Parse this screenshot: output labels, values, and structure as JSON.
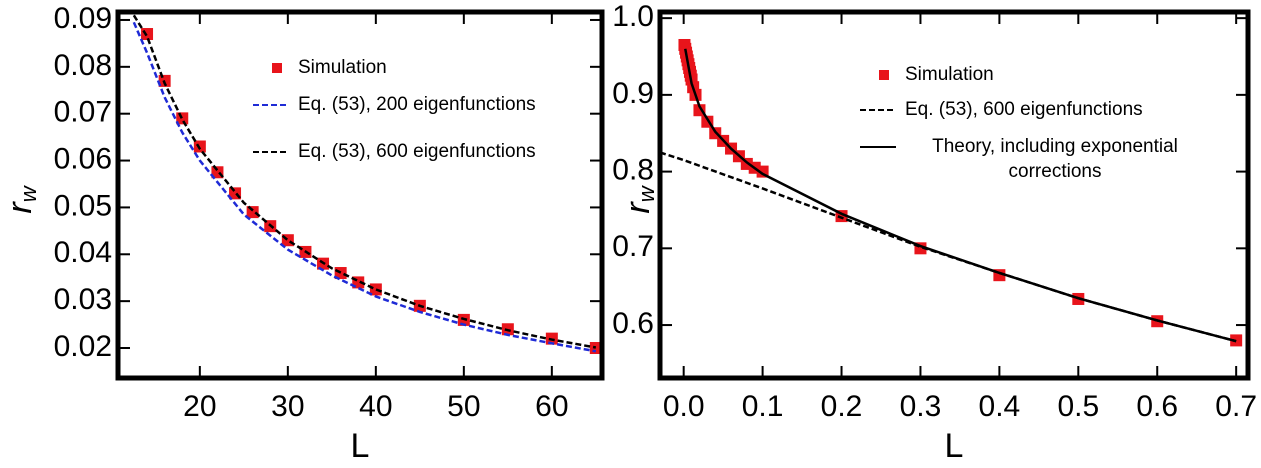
{
  "chart_data": [
    {
      "type": "line",
      "x_label": "L",
      "y_label": {
        "main": "r",
        "sub": "w"
      },
      "xlim": [
        10.7,
        65.7
      ],
      "xticks": [
        20,
        30,
        40,
        50,
        60
      ],
      "ylim": [
        0.0136,
        0.0917
      ],
      "yticks": [
        0.02,
        0.03,
        0.04,
        0.05,
        0.06,
        0.07,
        0.08,
        0.09
      ],
      "series": [
        {
          "name": "Simulation",
          "color": "#e8141b",
          "style": "square",
          "x": [
            14,
            16,
            18,
            20,
            22,
            24,
            26,
            28,
            30,
            32,
            34,
            36,
            38,
            40,
            45,
            50,
            55,
            60,
            65
          ],
          "values": [
            0.087,
            0.077,
            0.069,
            0.063,
            0.0575,
            0.053,
            0.049,
            0.046,
            0.043,
            0.0405,
            0.038,
            0.036,
            0.034,
            0.0325,
            0.029,
            0.026,
            0.024,
            0.022,
            0.02
          ]
        },
        {
          "name": "Eq. (53), 200 eigenfunctions",
          "color": "#1f2bd6",
          "style": "dashed",
          "x": [
            12.5,
            14,
            16,
            18,
            20,
            25,
            30,
            35,
            40,
            45,
            50,
            55,
            60,
            65
          ],
          "values": [
            0.0895,
            0.083,
            0.0735,
            0.066,
            0.06,
            0.0485,
            0.041,
            0.0355,
            0.031,
            0.0277,
            0.025,
            0.0228,
            0.021,
            0.0193
          ]
        },
        {
          "name": "Eq. (53), 600 eigenfunctions",
          "color": "#000000",
          "style": "dashed",
          "x": [
            12.5,
            14,
            16,
            18,
            20,
            25,
            30,
            35,
            40,
            45,
            50,
            55,
            60,
            65
          ],
          "values": [
            0.091,
            0.0865,
            0.0765,
            0.0688,
            0.0625,
            0.051,
            0.043,
            0.037,
            0.0325,
            0.029,
            0.0262,
            0.0238,
            0.0218,
            0.0201
          ]
        }
      ]
    },
    {
      "type": "line",
      "x_label": "L",
      "y_label": {
        "main": "r",
        "sub": "w"
      },
      "xlim": [
        -0.03,
        0.715
      ],
      "xticks": [
        {
          "value": 0,
          "label": "0.0"
        },
        0.1,
        0.2,
        0.3,
        0.4,
        0.5,
        0.6,
        0.7
      ],
      "ylim": [
        0.531,
        1.008
      ],
      "yticks": [
        0.6,
        0.7,
        0.8,
        0.9,
        {
          "value": 1,
          "label": "1.0"
        }
      ],
      "series": [
        {
          "name": "Simulation",
          "color": "#e8141b",
          "style": "square",
          "x": [
            0.001,
            0.002,
            0.003,
            0.004,
            0.005,
            0.006,
            0.007,
            0.008,
            0.009,
            0.01,
            0.012,
            0.015,
            0.02,
            0.03,
            0.04,
            0.05,
            0.06,
            0.07,
            0.08,
            0.09,
            0.1,
            0.2,
            0.3,
            0.4,
            0.5,
            0.6,
            0.7
          ],
          "values": [
            0.965,
            0.96,
            0.955,
            0.95,
            0.945,
            0.94,
            0.935,
            0.93,
            0.925,
            0.92,
            0.91,
            0.9,
            0.88,
            0.865,
            0.85,
            0.84,
            0.83,
            0.82,
            0.81,
            0.805,
            0.8,
            0.742,
            0.7,
            0.665,
            0.634,
            0.605,
            0.58
          ]
        },
        {
          "name": "Eq. (53), 600 eigenfunctions",
          "color": "#000000",
          "style": "dashed",
          "x": [
            -0.03,
            0,
            0.1,
            0.2,
            0.3,
            0.4,
            0.5,
            0.6,
            0.7
          ],
          "values": [
            0.825,
            0.815,
            0.778,
            0.74,
            0.702,
            0.668,
            0.635,
            0.606,
            0.579
          ]
        },
        {
          "name": "Theory, including exponential corrections",
          "color": "#000000",
          "style": "solid",
          "x": [
            0.002,
            0.01,
            0.02,
            0.04,
            0.06,
            0.08,
            0.1,
            0.2,
            0.3,
            0.4,
            0.5,
            0.6,
            0.7
          ],
          "values": [
            0.96,
            0.915,
            0.885,
            0.852,
            0.83,
            0.812,
            0.797,
            0.745,
            0.703,
            0.668,
            0.635,
            0.606,
            0.579
          ]
        }
      ]
    }
  ]
}
